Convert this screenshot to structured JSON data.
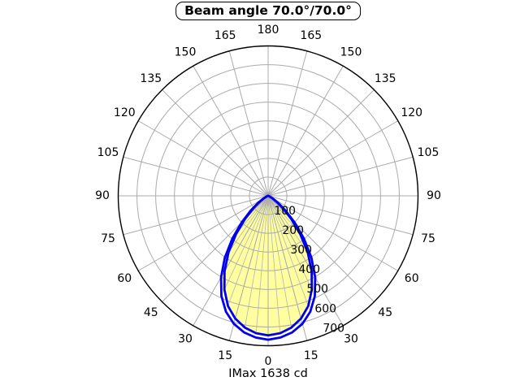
{
  "title": {
    "text": "Beam angle 70.0°/70.0°"
  },
  "footer": {
    "text": "IMax 1638 cd"
  },
  "chart_data": {
    "type": "polar",
    "title": "Beam angle 70.0°/70.0°",
    "annotation": "IMax 1638 cd",
    "imax_cd": 1638,
    "beam_angle_deg": [
      70.0,
      70.0
    ],
    "radial_axis": {
      "min": 0,
      "max": 800,
      "ticks": [
        100,
        200,
        300,
        400,
        500,
        600,
        700
      ]
    },
    "angular_axis": {
      "labels_deg": [
        0,
        15,
        30,
        45,
        60,
        75,
        90,
        105,
        120,
        135,
        150,
        165,
        180
      ],
      "mirrored": true,
      "zero_position": "bottom"
    },
    "grid": {
      "ring_step": 100,
      "spoke_step_deg": 15,
      "beam_spoke_step_deg": 5
    },
    "series": [
      {
        "name": "curve-filled",
        "filled": true,
        "angles_deg": [
          0,
          5,
          10,
          15,
          20,
          25,
          30,
          35,
          40,
          45,
          50,
          55,
          60,
          65,
          70,
          75,
          80,
          85,
          90
        ],
        "values": [
          745,
          736,
          714,
          678,
          626,
          552,
          465,
          368,
          266,
          174,
          102,
          52,
          23,
          9,
          3,
          1,
          0,
          0,
          0
        ]
      },
      {
        "name": "curve-outline",
        "filled": false,
        "angles_deg": [
          0,
          5,
          10,
          15,
          20,
          25,
          30,
          35,
          40,
          45,
          50,
          55,
          60,
          65,
          70,
          75,
          80,
          85,
          90
        ],
        "values": [
          768,
          759,
          740,
          707,
          658,
          590,
          502,
          403,
          296,
          198,
          120,
          64,
          30,
          13,
          5,
          2,
          1,
          0,
          0
        ]
      }
    ],
    "colors": {
      "curve": "#0000ee",
      "fill": "#ffffa0",
      "grid": "#ababab",
      "beam_grid": "#b4b4b4",
      "outer_circle": "#000000",
      "text": "#000000",
      "background": "#ffffff"
    }
  }
}
